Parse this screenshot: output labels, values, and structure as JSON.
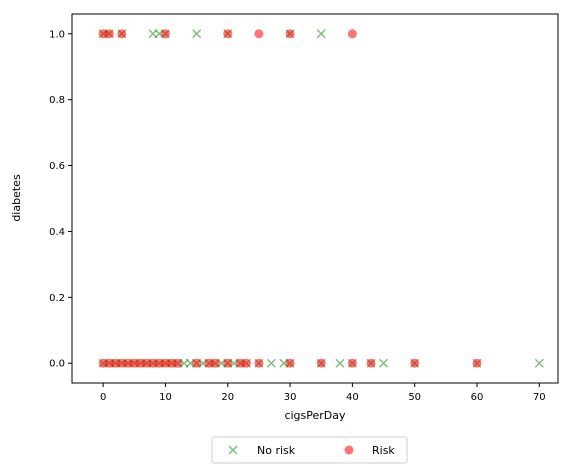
{
  "chart_data": {
    "type": "scatter",
    "xlabel": "cigsPerDay",
    "ylabel": "diabetes",
    "xlim": [
      -5,
      73
    ],
    "ylim": [
      -0.06,
      1.06
    ],
    "xticks": [
      0,
      10,
      20,
      30,
      40,
      50,
      60,
      70
    ],
    "yticks": [
      0.0,
      0.2,
      0.4,
      0.6,
      0.8,
      1.0
    ],
    "xtick_labels": [
      "0",
      "10",
      "20",
      "30",
      "40",
      "50",
      "60",
      "70"
    ],
    "ytick_labels": [
      "0.0",
      "0.2",
      "0.4",
      "0.6",
      "0.8",
      "1.0"
    ],
    "legend": {
      "placement": "bottom-center",
      "columns": 2
    },
    "series": [
      {
        "name": "No risk",
        "marker": "x",
        "color": "#008000",
        "points": [
          {
            "x": 0,
            "y": 1
          },
          {
            "x": 1,
            "y": 1
          },
          {
            "x": 3,
            "y": 1
          },
          {
            "x": 8,
            "y": 1
          },
          {
            "x": 9,
            "y": 1
          },
          {
            "x": 10,
            "y": 1
          },
          {
            "x": 15,
            "y": 1
          },
          {
            "x": 20,
            "y": 1
          },
          {
            "x": 30,
            "y": 1
          },
          {
            "x": 35,
            "y": 1
          },
          {
            "x": 0,
            "y": 0
          },
          {
            "x": 1,
            "y": 0
          },
          {
            "x": 2,
            "y": 0
          },
          {
            "x": 3,
            "y": 0
          },
          {
            "x": 4,
            "y": 0
          },
          {
            "x": 5,
            "y": 0
          },
          {
            "x": 6,
            "y": 0
          },
          {
            "x": 7,
            "y": 0
          },
          {
            "x": 8,
            "y": 0
          },
          {
            "x": 9,
            "y": 0
          },
          {
            "x": 10,
            "y": 0
          },
          {
            "x": 11,
            "y": 0
          },
          {
            "x": 12,
            "y": 0
          },
          {
            "x": 13,
            "y": 0
          },
          {
            "x": 14,
            "y": 0
          },
          {
            "x": 15,
            "y": 0
          },
          {
            "x": 16,
            "y": 0
          },
          {
            "x": 17,
            "y": 0
          },
          {
            "x": 18,
            "y": 0
          },
          {
            "x": 19,
            "y": 0
          },
          {
            "x": 20,
            "y": 0
          },
          {
            "x": 21,
            "y": 0
          },
          {
            "x": 22,
            "y": 0
          },
          {
            "x": 23,
            "y": 0
          },
          {
            "x": 25,
            "y": 0
          },
          {
            "x": 27,
            "y": 0
          },
          {
            "x": 29,
            "y": 0
          },
          {
            "x": 30,
            "y": 0
          },
          {
            "x": 35,
            "y": 0
          },
          {
            "x": 38,
            "y": 0
          },
          {
            "x": 40,
            "y": 0
          },
          {
            "x": 43,
            "y": 0
          },
          {
            "x": 45,
            "y": 0
          },
          {
            "x": 50,
            "y": 0
          },
          {
            "x": 60,
            "y": 0
          },
          {
            "x": 70,
            "y": 0
          }
        ]
      },
      {
        "name": "Risk",
        "marker": "o",
        "color": "#ff0000",
        "points": [
          {
            "x": 0,
            "y": 1
          },
          {
            "x": 1,
            "y": 1
          },
          {
            "x": 3,
            "y": 1
          },
          {
            "x": 10,
            "y": 1
          },
          {
            "x": 20,
            "y": 1
          },
          {
            "x": 25,
            "y": 1
          },
          {
            "x": 30,
            "y": 1
          },
          {
            "x": 40,
            "y": 1
          },
          {
            "x": 0,
            "y": 0
          },
          {
            "x": 1,
            "y": 0
          },
          {
            "x": 2,
            "y": 0
          },
          {
            "x": 3,
            "y": 0
          },
          {
            "x": 4,
            "y": 0
          },
          {
            "x": 5,
            "y": 0
          },
          {
            "x": 6,
            "y": 0
          },
          {
            "x": 7,
            "y": 0
          },
          {
            "x": 8,
            "y": 0
          },
          {
            "x": 9,
            "y": 0
          },
          {
            "x": 10,
            "y": 0
          },
          {
            "x": 11,
            "y": 0
          },
          {
            "x": 12,
            "y": 0
          },
          {
            "x": 15,
            "y": 0
          },
          {
            "x": 17,
            "y": 0
          },
          {
            "x": 18,
            "y": 0
          },
          {
            "x": 20,
            "y": 0
          },
          {
            "x": 22,
            "y": 0
          },
          {
            "x": 23,
            "y": 0
          },
          {
            "x": 25,
            "y": 0
          },
          {
            "x": 30,
            "y": 0
          },
          {
            "x": 35,
            "y": 0
          },
          {
            "x": 40,
            "y": 0
          },
          {
            "x": 43,
            "y": 0
          },
          {
            "x": 50,
            "y": 0
          },
          {
            "x": 60,
            "y": 0
          }
        ]
      }
    ]
  }
}
